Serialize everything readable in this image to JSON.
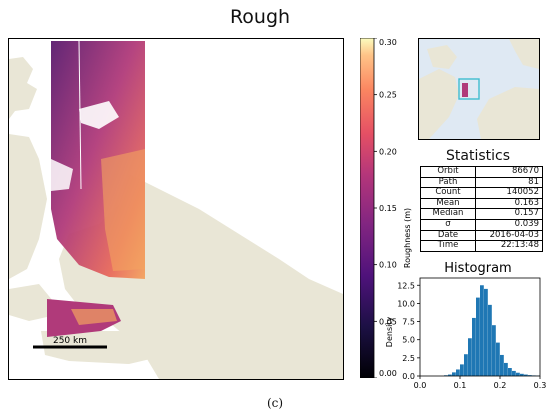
{
  "title": "Rough",
  "caption": "(c)",
  "scale_bar": {
    "label": "250 km"
  },
  "colors": {
    "land": "#e9e6d6",
    "hist_bar": "#1f77b4",
    "track_dark": "#5a1b6e",
    "track_mid": "#b03a7a",
    "track_light": "#f4a35f"
  },
  "colorbar": {
    "label": "Roughness (m)",
    "ticks": [
      "0.00",
      "0.05",
      "0.10",
      "0.15",
      "0.20",
      "0.25",
      "0.30"
    ],
    "range": [
      0.0,
      0.3
    ],
    "colormap": "magma"
  },
  "inset": {
    "icon": "arctic-locator-map",
    "box_color": "#3fbcd0"
  },
  "statistics": {
    "title": "Statistics",
    "rows": [
      {
        "key": "Orbit",
        "value": "86670"
      },
      {
        "key": "Path",
        "value": "81"
      },
      {
        "key": "Count",
        "value": "140052"
      },
      {
        "key": "Mean",
        "value": "0.163"
      },
      {
        "key": "Median",
        "value": "0.157"
      },
      {
        "key": "σ",
        "value": "0.039"
      },
      {
        "key": "Date",
        "value": "2016-04-03"
      },
      {
        "key": "Time",
        "value": "22:13:48"
      }
    ]
  },
  "chart_data": {
    "type": "bar",
    "title": "Histogram",
    "xlabel": "",
    "ylabel": "Density",
    "xlim": [
      0.0,
      0.3
    ],
    "ylim": [
      0,
      13.5
    ],
    "x_ticks": [
      "0.0",
      "0.1",
      "0.2",
      "0.3"
    ],
    "y_ticks": [
      "0.0",
      "2.5",
      "5.0",
      "7.5",
      "10.0",
      "12.5"
    ],
    "bin_width": 0.01,
    "bins": [
      {
        "x": 0.06,
        "y": 0.1
      },
      {
        "x": 0.07,
        "y": 0.2
      },
      {
        "x": 0.08,
        "y": 0.5
      },
      {
        "x": 0.09,
        "y": 0.9
      },
      {
        "x": 0.1,
        "y": 1.6
      },
      {
        "x": 0.11,
        "y": 3.0
      },
      {
        "x": 0.12,
        "y": 5.2
      },
      {
        "x": 0.13,
        "y": 8.0
      },
      {
        "x": 0.14,
        "y": 10.8
      },
      {
        "x": 0.15,
        "y": 12.5
      },
      {
        "x": 0.16,
        "y": 12.0
      },
      {
        "x": 0.17,
        "y": 9.8
      },
      {
        "x": 0.18,
        "y": 7.0
      },
      {
        "x": 0.19,
        "y": 4.6
      },
      {
        "x": 0.2,
        "y": 2.9
      },
      {
        "x": 0.21,
        "y": 1.8
      },
      {
        "x": 0.22,
        "y": 1.1
      },
      {
        "x": 0.23,
        "y": 0.7
      },
      {
        "x": 0.24,
        "y": 0.45
      },
      {
        "x": 0.25,
        "y": 0.3
      },
      {
        "x": 0.26,
        "y": 0.2
      },
      {
        "x": 0.27,
        "y": 0.12
      },
      {
        "x": 0.28,
        "y": 0.08
      },
      {
        "x": 0.29,
        "y": 0.05
      }
    ]
  }
}
